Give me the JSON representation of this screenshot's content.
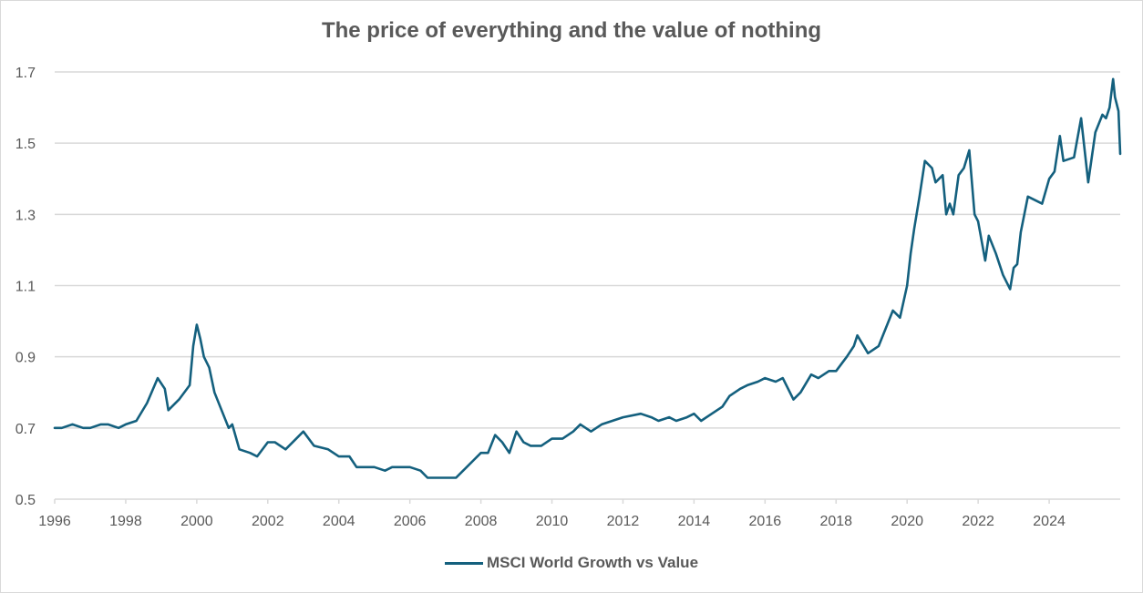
{
  "chart_data": {
    "type": "line",
    "title": "The price of everything and the value of nothing",
    "xlabel": "",
    "ylabel": "",
    "xlim": [
      1996,
      2026
    ],
    "ylim": [
      0.5,
      1.7
    ],
    "x_ticks": [
      "1996",
      "1998",
      "2000",
      "2002",
      "2004",
      "2006",
      "2008",
      "2010",
      "2012",
      "2014",
      "2016",
      "2018",
      "2020",
      "2022",
      "2024"
    ],
    "y_ticks": [
      "0.5",
      "0.7",
      "0.9",
      "1.1",
      "1.3",
      "1.5",
      "1.7"
    ],
    "grid": "horizontal",
    "legend_position": "bottom",
    "series": [
      {
        "name": "MSCI World Growth vs Value",
        "color": "#14607e",
        "x": [
          1996.0,
          1996.2,
          1996.5,
          1996.8,
          1997.0,
          1997.3,
          1997.5,
          1997.8,
          1998.0,
          1998.3,
          1998.6,
          1998.9,
          1999.1,
          1999.2,
          1999.5,
          1999.8,
          1999.9,
          2000.0,
          2000.1,
          2000.2,
          2000.35,
          2000.5,
          2000.7,
          2000.9,
          2001.0,
          2001.2,
          2001.5,
          2001.7,
          2002.0,
          2002.2,
          2002.5,
          2002.8,
          2003.0,
          2003.3,
          2003.7,
          2004.0,
          2004.3,
          2004.5,
          2005.0,
          2005.3,
          2005.5,
          2006.0,
          2006.3,
          2006.5,
          2007.0,
          2007.3,
          2007.5,
          2007.8,
          2008.0,
          2008.2,
          2008.4,
          2008.6,
          2008.8,
          2009.0,
          2009.2,
          2009.4,
          2009.7,
          2010.0,
          2010.3,
          2010.6,
          2010.8,
          2011.1,
          2011.4,
          2011.7,
          2012.0,
          2012.5,
          2012.8,
          2013.0,
          2013.3,
          2013.5,
          2013.8,
          2014.0,
          2014.2,
          2014.5,
          2014.8,
          2015.0,
          2015.3,
          2015.5,
          2015.8,
          2016.0,
          2016.3,
          2016.5,
          2016.8,
          2017.0,
          2017.3,
          2017.5,
          2017.8,
          2018.0,
          2018.3,
          2018.5,
          2018.6,
          2018.9,
          2019.2,
          2019.4,
          2019.6,
          2019.8,
          2020.0,
          2020.1,
          2020.2,
          2020.35,
          2020.5,
          2020.7,
          2020.8,
          2021.0,
          2021.1,
          2021.2,
          2021.3,
          2021.45,
          2021.6,
          2021.75,
          2021.9,
          2022.0,
          2022.2,
          2022.3,
          2022.5,
          2022.7,
          2022.9,
          2023.0,
          2023.1,
          2023.2,
          2023.4,
          2023.6,
          2023.8,
          2024.0,
          2024.15,
          2024.3,
          2024.4,
          2024.7,
          2024.9,
          2025.1,
          2025.3,
          2025.5,
          2025.6,
          2025.7,
          2025.8,
          2025.85,
          2025.95,
          2026.0
        ],
        "values": [
          0.7,
          0.7,
          0.71,
          0.7,
          0.7,
          0.71,
          0.71,
          0.7,
          0.71,
          0.72,
          0.77,
          0.84,
          0.81,
          0.75,
          0.78,
          0.82,
          0.93,
          0.99,
          0.95,
          0.9,
          0.87,
          0.8,
          0.75,
          0.7,
          0.71,
          0.64,
          0.63,
          0.62,
          0.66,
          0.66,
          0.64,
          0.67,
          0.69,
          0.65,
          0.64,
          0.62,
          0.62,
          0.59,
          0.59,
          0.58,
          0.59,
          0.59,
          0.58,
          0.56,
          0.56,
          0.56,
          0.58,
          0.61,
          0.63,
          0.63,
          0.68,
          0.66,
          0.63,
          0.69,
          0.66,
          0.65,
          0.65,
          0.67,
          0.67,
          0.69,
          0.71,
          0.69,
          0.71,
          0.72,
          0.73,
          0.74,
          0.73,
          0.72,
          0.73,
          0.72,
          0.73,
          0.74,
          0.72,
          0.74,
          0.76,
          0.79,
          0.81,
          0.82,
          0.83,
          0.84,
          0.83,
          0.84,
          0.78,
          0.8,
          0.85,
          0.84,
          0.86,
          0.86,
          0.9,
          0.93,
          0.96,
          0.91,
          0.93,
          0.98,
          1.03,
          1.01,
          1.1,
          1.19,
          1.26,
          1.35,
          1.45,
          1.43,
          1.39,
          1.41,
          1.3,
          1.33,
          1.3,
          1.41,
          1.43,
          1.48,
          1.3,
          1.28,
          1.17,
          1.24,
          1.19,
          1.13,
          1.09,
          1.15,
          1.16,
          1.25,
          1.35,
          1.34,
          1.33,
          1.4,
          1.42,
          1.52,
          1.45,
          1.46,
          1.57,
          1.39,
          1.53,
          1.58,
          1.57,
          1.6,
          1.68,
          1.63,
          1.59,
          1.47
        ]
      }
    ]
  },
  "legend": {
    "label": "MSCI World Growth vs Value",
    "color": "#14607e"
  }
}
